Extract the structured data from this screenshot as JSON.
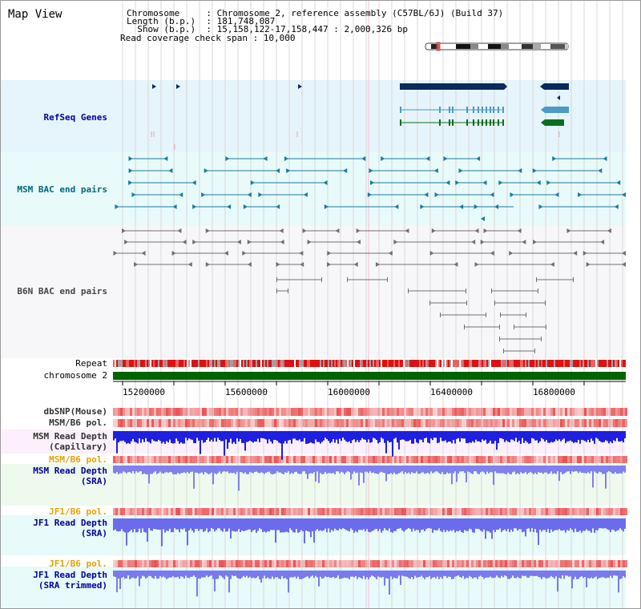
{
  "view": {
    "title": "Map View",
    "info_lines": [
      "Chromosome     : Chromosome 2, reference assembly (C57BL/6J) (Build 37)",
      "Length (b.p.)  : 181,748,087",
      "  Show (b.p.)  : 15,158,122-17,158,447 : 2,000,326 bp",
      "Read coverage check span : 10,000"
    ]
  },
  "tracks": {
    "refseq": "RefSeq Genes",
    "msm_bac": "MSM BAC end pairs",
    "b6n_bac": "B6N BAC end pairs",
    "repeat": "Repeat",
    "chromosome": "chromosome 2",
    "dbsnp": "dbSNP(Mouse)",
    "msm_b6_pol_1": "MSM/B6 pol.",
    "msm_read_depth_cap_1": "MSM Read Depth",
    "msm_read_depth_cap_2": "(Capillary)",
    "msm_b6_pol_2": "MSM/B6 pol.",
    "msm_read_depth_sra_1": "MSM Read Depth",
    "msm_read_depth_sra_2": "(SRA)",
    "jf1_b6_pol_1": "JF1/B6 pol.",
    "jf1_read_depth_1": "JF1 Read Depth",
    "jf1_read_depth_2": "(SRA)",
    "jf1_b6_pol_2": "JF1/B6 pol.",
    "jf1_read_depth_trim_1": "JF1 Read Depth",
    "jf1_read_depth_trim_2": "(SRA trimmed)"
  },
  "axis": {
    "ticks": [
      "15200000",
      "15600000",
      "16000000",
      "16400000",
      "16800000"
    ]
  },
  "colors": {
    "refseq_bg": "#e6f4fb",
    "msm_bg": "#e8fafa",
    "b6n_bg": "#f7f7fa",
    "refseq_label": "#000099",
    "msm_label": "#006680",
    "b6n_label": "#444444",
    "orange_label": "#e8a000",
    "blue_label": "#000099",
    "gene_dark": "#0a2a5c",
    "gene_mid": "#4a9ac4",
    "gene_green": "#0a6e1e",
    "chromosome_green": "#006400"
  }
}
